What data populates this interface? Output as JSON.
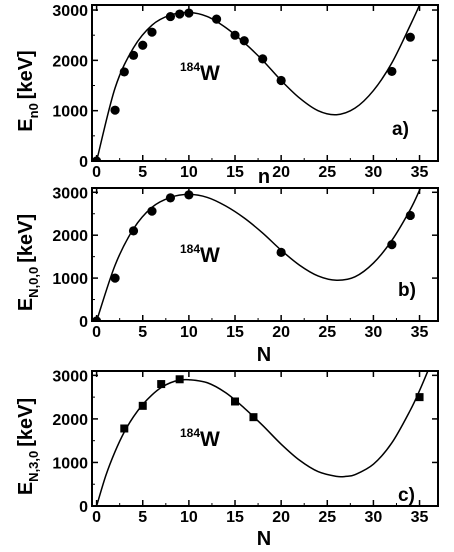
{
  "chart_data": [
    {
      "type": "scatter",
      "panel_label": "a)",
      "annotation": {
        "mass": "184",
        "element": "W"
      },
      "xlabel": "n",
      "ylabel": {
        "main": "E",
        "sub": "n0",
        "unit": "[keV]"
      },
      "xlim": [
        -0.5,
        37
      ],
      "ylim": [
        0,
        3100
      ],
      "xticks": [
        0,
        5,
        10,
        15,
        20,
        25,
        30,
        35
      ],
      "yticks": [
        0,
        1000,
        2000,
        3000
      ],
      "marker": "circle",
      "points": {
        "x": [
          0,
          2,
          3,
          4,
          5,
          6,
          8,
          9,
          10,
          13,
          15,
          16,
          18,
          20,
          32,
          34
        ],
        "y": [
          0,
          1010,
          1770,
          2100,
          2300,
          2560,
          2870,
          2920,
          2940,
          2820,
          2500,
          2390,
          2030,
          1600,
          1780,
          2460
        ]
      },
      "curve": {
        "x": [
          0,
          2,
          4,
          6,
          8,
          10,
          12,
          14,
          16,
          18,
          20,
          22,
          24,
          26,
          28,
          30,
          32,
          34,
          35,
          36
        ],
        "y": [
          0,
          1450,
          2250,
          2700,
          2900,
          2950,
          2870,
          2650,
          2350,
          2000,
          1600,
          1250,
          1000,
          920,
          1050,
          1400,
          1950,
          2700,
          3100,
          3550
        ]
      }
    },
    {
      "type": "scatter",
      "panel_label": "b)",
      "annotation": {
        "mass": "184",
        "element": "W"
      },
      "xlabel": "N",
      "ylabel": {
        "main": "E",
        "sub": "N,0,0",
        "unit": "[keV]"
      },
      "xlim": [
        -0.5,
        37
      ],
      "ylim": [
        0,
        3100
      ],
      "xticks": [
        0,
        5,
        10,
        15,
        20,
        25,
        30,
        35
      ],
      "yticks": [
        0,
        1000,
        2000,
        3000
      ],
      "marker": "circle",
      "points": {
        "x": [
          0,
          2,
          4,
          6,
          8,
          10,
          20,
          32,
          34
        ],
        "y": [
          0,
          1000,
          2100,
          2560,
          2870,
          2940,
          1600,
          1780,
          2460
        ]
      },
      "curve": {
        "x": [
          0,
          2,
          4,
          6,
          8,
          10,
          12,
          14,
          16,
          18,
          20,
          22,
          24,
          26,
          28,
          30,
          32,
          34,
          35,
          36
        ],
        "y": [
          0,
          1300,
          2150,
          2650,
          2880,
          2950,
          2880,
          2680,
          2400,
          2050,
          1650,
          1300,
          1050,
          950,
          1030,
          1350,
          1880,
          2600,
          3050,
          3550
        ]
      }
    },
    {
      "type": "scatter",
      "panel_label": "c)",
      "annotation": {
        "mass": "184",
        "element": "W"
      },
      "xlabel": "N",
      "ylabel": {
        "main": "E",
        "sub": "N,3,0",
        "unit": "[keV]"
      },
      "xlim": [
        -0.5,
        37
      ],
      "ylim": [
        0,
        3100
      ],
      "xticks": [
        0,
        5,
        10,
        15,
        20,
        25,
        30,
        35
      ],
      "yticks": [
        0,
        1000,
        2000,
        3000
      ],
      "marker": "square",
      "points": {
        "x": [
          3,
          5,
          7,
          9,
          15,
          17,
          35
        ],
        "y": [
          1780,
          2300,
          2800,
          2910,
          2400,
          2040,
          2500
        ]
      },
      "curve": {
        "x": [
          0,
          1,
          2,
          3,
          4,
          5,
          6,
          7,
          8,
          9,
          10,
          12,
          14,
          16,
          18,
          20,
          22,
          24,
          26,
          27,
          28,
          30,
          32,
          34,
          35,
          36
        ],
        "y": [
          0,
          700,
          1250,
          1700,
          2050,
          2330,
          2550,
          2720,
          2830,
          2890,
          2900,
          2830,
          2600,
          2250,
          1850,
          1420,
          1050,
          790,
          680,
          680,
          720,
          960,
          1450,
          2200,
          2650,
          3150
        ]
      }
    }
  ]
}
